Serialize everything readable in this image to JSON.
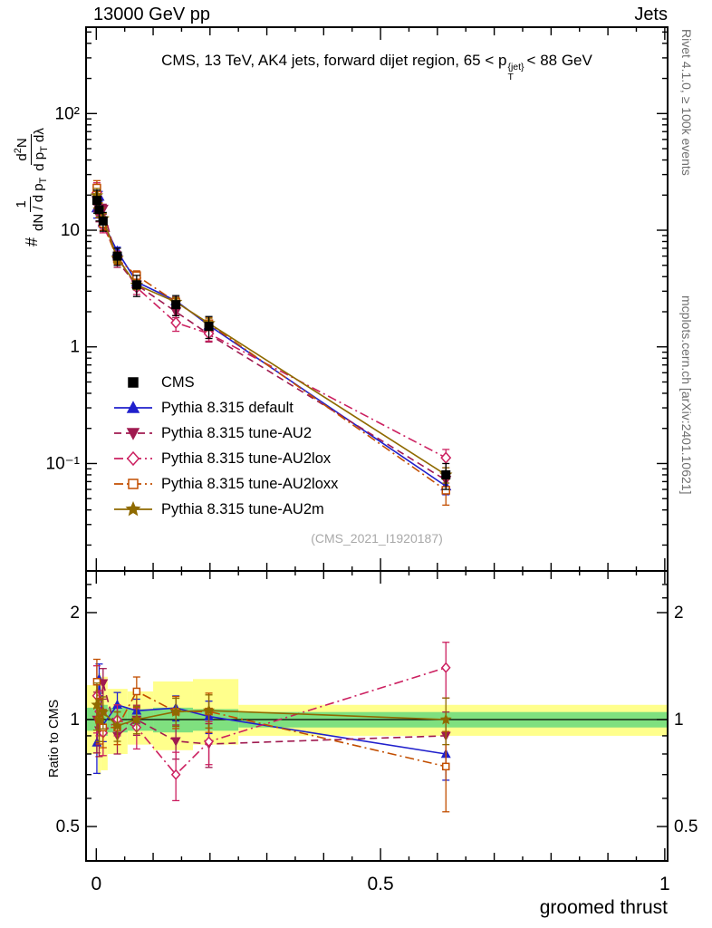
{
  "header": {
    "left": "13000 GeV pp",
    "right": "Jets"
  },
  "title": {
    "a": "CMS, 13 TeV, AK4 jets, forward dijet region, 65 < p",
    "sup": "{jet}",
    "sub": "T",
    "b": "< 88 GeV"
  },
  "watermark": "(CMS_2021_I1920187)",
  "sidebar": {
    "top": "Rivet 4.1.0, ≥ 100k events",
    "bottom": "mcplots.cern.ch [arXiv:2401.10621]"
  },
  "axes": {
    "xlabel": "groomed thrust",
    "ratio_ylabel": "Ratio to CMS",
    "ylabel": {
      "prefix": "#",
      "f1num": "1",
      "f1den": "dN / d p",
      "f1den_sub": "T",
      "f2num": "d",
      "f2num_sup": "2",
      "f2num_b": "N",
      "f2den": "d p",
      "f2den_sub": "T",
      "f2den_b": " dλ"
    }
  },
  "chart_data": {
    "type": "line",
    "title": "CMS, 13 TeV, AK4 jets, forward dijet region, 65 < pT^{jet} < 88 GeV",
    "xlabel": "groomed thrust",
    "ylabel": "# 1/(dN/dpT) d²N/(dpT dλ)",
    "ratio_ylabel": "Ratio to CMS",
    "xlim": [
      -0.018,
      1.005
    ],
    "ylim_main": [
      0.012,
      550
    ],
    "yscale_main": "log",
    "ylim_ratio": [
      0.4,
      2.62
    ],
    "yscale_ratio": "log",
    "grid": false,
    "legend_position": "inside-left",
    "xticks": [
      {
        "v": 0,
        "label": "0"
      },
      {
        "v": 0.5,
        "label": "0.5"
      },
      {
        "v": 1,
        "label": "1"
      }
    ],
    "yticks_main": [
      {
        "v": 100,
        "label": "10²"
      },
      {
        "v": 10,
        "label": "10"
      },
      {
        "v": 1,
        "label": "1"
      },
      {
        "v": 0.1,
        "label": "10⁻¹"
      }
    ],
    "yticks_ratio": [
      {
        "v": 2,
        "label": "2"
      },
      {
        "v": 1,
        "label": "1"
      },
      {
        "v": 0.5,
        "label": "0.5"
      }
    ],
    "x": [
      0.001,
      0.005,
      0.012,
      0.037,
      0.071,
      0.14,
      0.198,
      0.615
    ],
    "cms": {
      "label": "CMS",
      "color": "#000000",
      "marker": "square",
      "filled": true,
      "values": [
        18,
        15,
        12,
        6.0,
        3.4,
        2.3,
        1.5,
        0.08
      ],
      "errors": [
        4.0,
        3.0,
        2.2,
        1.0,
        0.7,
        0.45,
        0.32,
        0.02
      ]
    },
    "series": [
      {
        "label": "Pythia 8.315 default",
        "color": "#2020cc",
        "line": "solid",
        "marker": "triangle-up",
        "filled": true,
        "values": [
          15.5,
          19.5,
          11.6,
          6.6,
          3.6,
          2.48,
          1.53,
          0.064
        ],
        "errors": [
          2.8,
          2.0,
          1.2,
          0.55,
          0.28,
          0.2,
          0.16,
          0.01
        ]
      },
      {
        "label": "Pythia 8.315 tune-AU2",
        "color": "#a01a50",
        "line": "dash",
        "marker": "triangle-down",
        "filled": true,
        "values": [
          18.0,
          14.0,
          15.2,
          5.4,
          3.4,
          2.0,
          1.28,
          0.072
        ],
        "errors": [
          3.5,
          2.2,
          1.5,
          0.6,
          0.33,
          0.22,
          0.18,
          0.012
        ]
      },
      {
        "label": "Pythia 8.315 tune-AU2lox",
        "color": "#cc2060",
        "line": "dashdot",
        "marker": "diamond",
        "filled": false,
        "values": [
          21.0,
          15.8,
          11.0,
          6.0,
          3.23,
          1.61,
          1.3,
          0.112
        ],
        "errors": [
          4.5,
          2.3,
          1.5,
          0.6,
          0.42,
          0.25,
          0.18,
          0.02
        ]
      },
      {
        "label": "Pythia 8.315 tune-AU2loxx",
        "color": "#c24e00",
        "line": "dashdot",
        "marker": "square",
        "filled": false,
        "values": [
          23.0,
          15.0,
          11.4,
          5.7,
          4.08,
          2.42,
          1.58,
          0.059
        ],
        "errors": [
          3.6,
          2.2,
          1.4,
          0.6,
          0.4,
          0.25,
          0.2,
          0.015
        ]
      },
      {
        "label": "Pythia 8.315 tune-AU2m",
        "color": "#8f6a00",
        "line": "solid",
        "marker": "star",
        "filled": true,
        "values": [
          19.8,
          15.0,
          12.6,
          5.76,
          3.4,
          2.42,
          1.59,
          0.08
        ],
        "errors": [
          3.0,
          2.0,
          1.3,
          0.55,
          0.3,
          0.22,
          0.17,
          0.012
        ]
      }
    ],
    "bands": {
      "yellow_color": "#ffff8c",
      "green_color": "#7fe07f",
      "edges": [
        -0.018,
        0.003,
        0.008,
        0.02,
        0.055,
        0.1,
        0.17,
        0.25,
        1.005
      ],
      "yellow": [
        [
          0.8,
          1.25
        ],
        [
          0.7,
          1.35
        ],
        [
          0.72,
          1.32
        ],
        [
          0.8,
          1.22
        ],
        [
          0.85,
          1.2
        ],
        [
          0.82,
          1.28
        ],
        [
          0.85,
          1.3
        ],
        [
          0.9,
          1.1
        ]
      ],
      "green": [
        [
          0.93,
          1.08
        ],
        [
          0.9,
          1.1
        ],
        [
          0.9,
          1.1
        ],
        [
          0.92,
          1.08
        ],
        [
          0.93,
          1.07
        ],
        [
          0.92,
          1.08
        ],
        [
          0.93,
          1.07
        ],
        [
          0.95,
          1.05
        ]
      ]
    }
  }
}
